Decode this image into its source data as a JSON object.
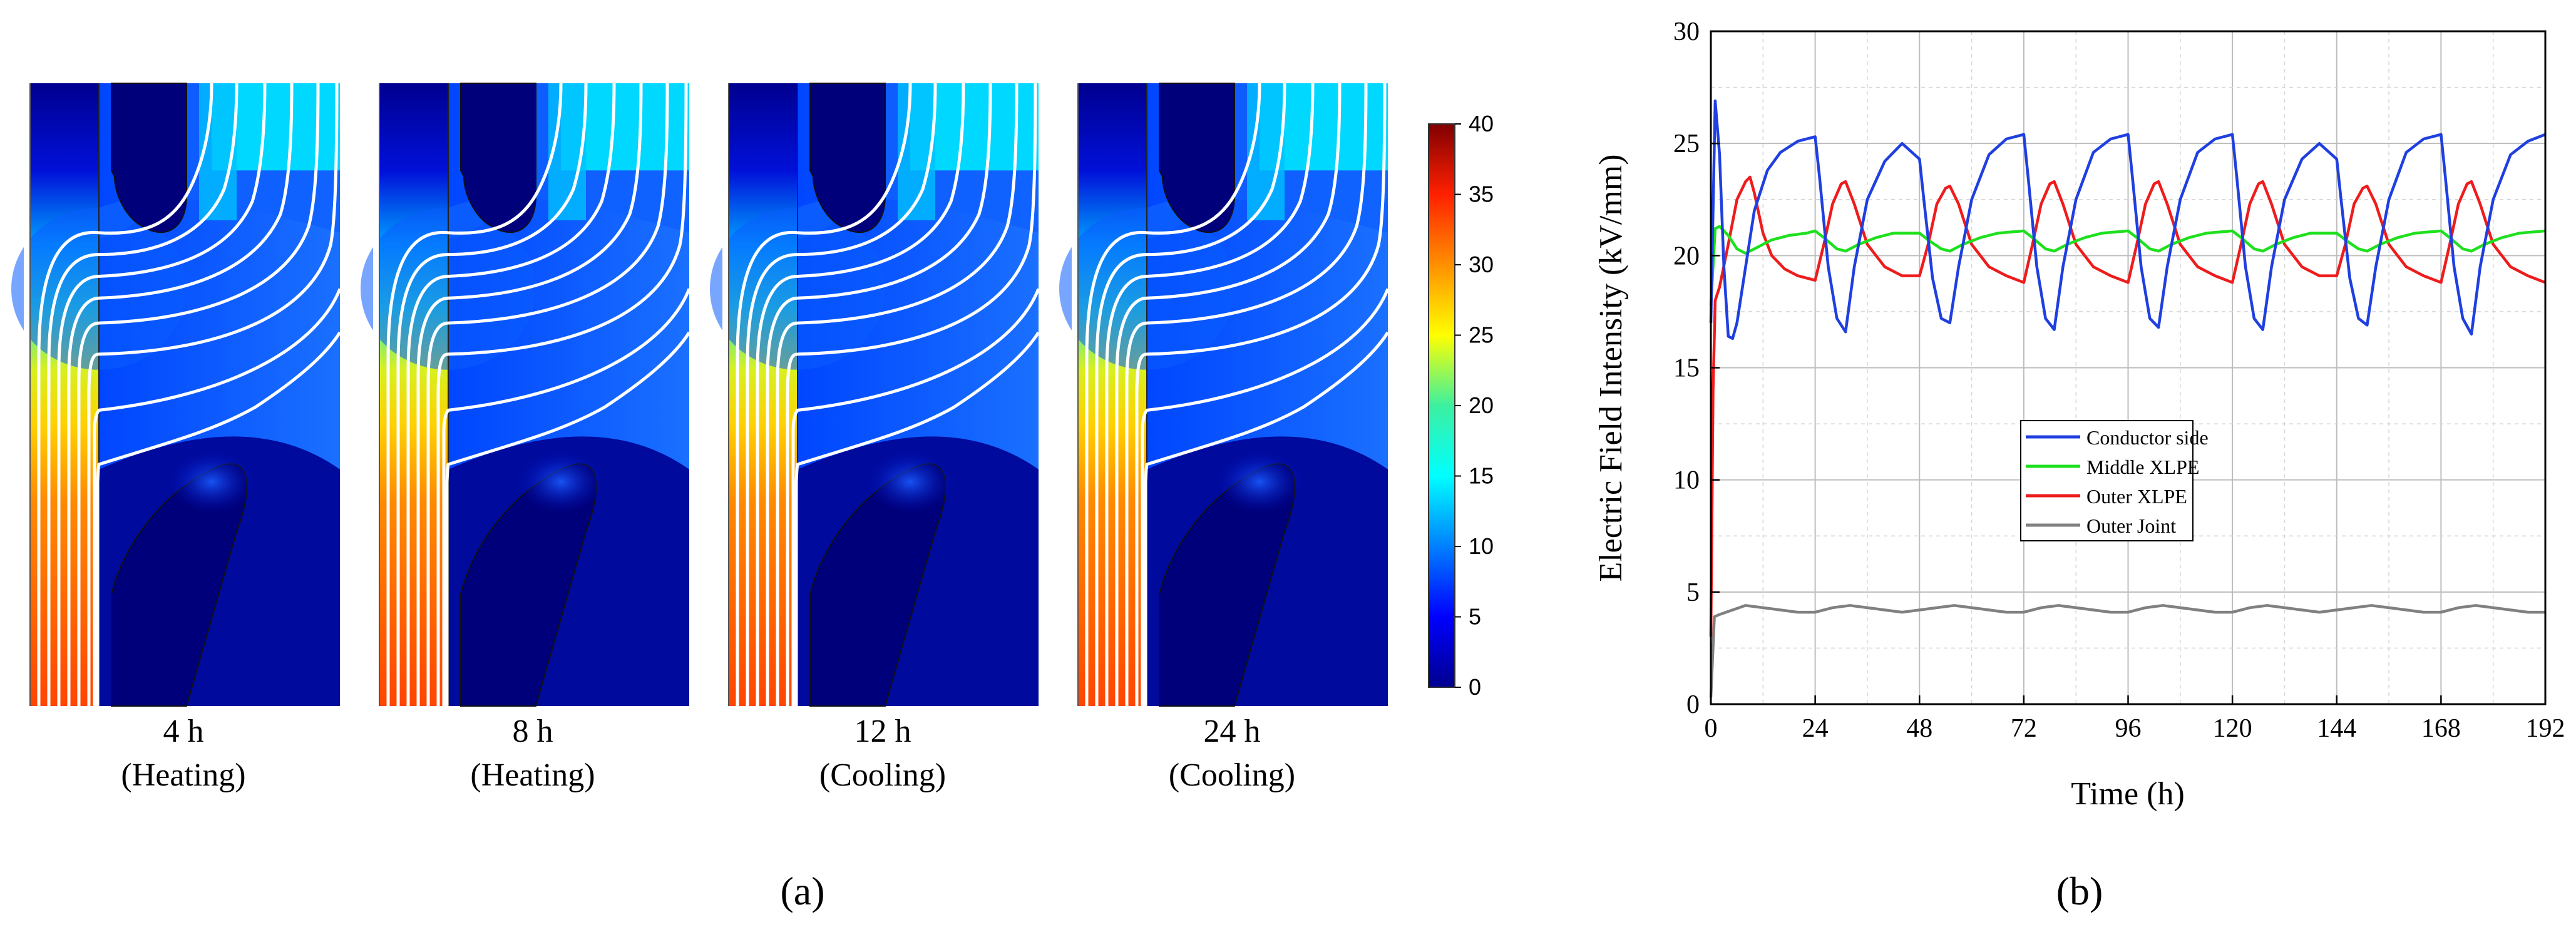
{
  "panel_a": {
    "label": "(a)",
    "colorbar": {
      "min": 0,
      "max": 40,
      "ticks": [
        0,
        5,
        10,
        15,
        20,
        25,
        30,
        35,
        40
      ]
    },
    "maps": [
      {
        "time": "4 h",
        "mode": "(Heating)"
      },
      {
        "time": "8 h",
        "mode": "(Heating)"
      },
      {
        "time": "12 h",
        "mode": "(Cooling)"
      },
      {
        "time": "24 h",
        "mode": "(Cooling)"
      }
    ]
  },
  "panel_b": {
    "label": "(b)"
  },
  "chart_data": {
    "type": "line",
    "title": "",
    "xlabel": "Time (h)",
    "ylabel": "Electric Field Intensity (kV/mm)",
    "xlim": [
      0,
      192
    ],
    "ylim": [
      0,
      30
    ],
    "xticks": [
      0,
      24,
      48,
      72,
      96,
      120,
      144,
      168,
      192
    ],
    "yticks": [
      0,
      5,
      10,
      15,
      20,
      25,
      30
    ],
    "grid": true,
    "legend_position": "center-left",
    "series": [
      {
        "name": "Conductor side",
        "color": "#1f3fe0",
        "points": [
          [
            0,
            17.0
          ],
          [
            1,
            26.9
          ],
          [
            2,
            24.5
          ],
          [
            3,
            19.5
          ],
          [
            4,
            16.4
          ],
          [
            5,
            16.3
          ],
          [
            6,
            17.0
          ],
          [
            8,
            19.5
          ],
          [
            10,
            22.0
          ],
          [
            13,
            23.8
          ],
          [
            16,
            24.6
          ],
          [
            20,
            25.1
          ],
          [
            24,
            25.3
          ],
          [
            25,
            23.5
          ],
          [
            27,
            19.5
          ],
          [
            29,
            17.2
          ],
          [
            31,
            16.6
          ],
          [
            33,
            19.5
          ],
          [
            36,
            22.5
          ],
          [
            40,
            24.2
          ],
          [
            44,
            25.0
          ],
          [
            48,
            24.3
          ],
          [
            49,
            22.5
          ],
          [
            51,
            19.0
          ],
          [
            53,
            17.2
          ],
          [
            55,
            17.0
          ],
          [
            57,
            19.5
          ],
          [
            60,
            22.5
          ],
          [
            64,
            24.5
          ],
          [
            68,
            25.2
          ],
          [
            72,
            25.4
          ],
          [
            73,
            23.5
          ],
          [
            75,
            19.5
          ],
          [
            77,
            17.2
          ],
          [
            79,
            16.7
          ],
          [
            81,
            19.5
          ],
          [
            84,
            22.5
          ],
          [
            88,
            24.6
          ],
          [
            92,
            25.2
          ],
          [
            96,
            25.4
          ],
          [
            97,
            23.5
          ],
          [
            99,
            19.5
          ],
          [
            101,
            17.2
          ],
          [
            103,
            16.8
          ],
          [
            105,
            19.5
          ],
          [
            108,
            22.5
          ],
          [
            112,
            24.6
          ],
          [
            116,
            25.2
          ],
          [
            120,
            25.4
          ],
          [
            121,
            23.5
          ],
          [
            123,
            19.5
          ],
          [
            125,
            17.2
          ],
          [
            127,
            16.7
          ],
          [
            129,
            19.5
          ],
          [
            132,
            22.5
          ],
          [
            136,
            24.3
          ],
          [
            140,
            25.0
          ],
          [
            144,
            24.3
          ],
          [
            145,
            22.5
          ],
          [
            147,
            19.0
          ],
          [
            149,
            17.2
          ],
          [
            151,
            16.9
          ],
          [
            153,
            19.5
          ],
          [
            156,
            22.5
          ],
          [
            160,
            24.6
          ],
          [
            164,
            25.2
          ],
          [
            168,
            25.4
          ],
          [
            169,
            23.5
          ],
          [
            171,
            19.5
          ],
          [
            173,
            17.2
          ],
          [
            175,
            16.5
          ],
          [
            177,
            19.5
          ],
          [
            180,
            22.5
          ],
          [
            184,
            24.5
          ],
          [
            188,
            25.1
          ],
          [
            192,
            25.4
          ]
        ]
      },
      {
        "name": "Middle XLPE",
        "color": "#1ee01e",
        "points": [
          [
            0,
            17.8
          ],
          [
            1,
            21.2
          ],
          [
            2,
            21.3
          ],
          [
            4,
            20.9
          ],
          [
            6,
            20.3
          ],
          [
            8,
            20.1
          ],
          [
            10,
            20.3
          ],
          [
            14,
            20.7
          ],
          [
            18,
            20.9
          ],
          [
            22,
            21.0
          ],
          [
            24,
            21.1
          ],
          [
            26,
            20.8
          ],
          [
            29,
            20.3
          ],
          [
            31,
            20.2
          ],
          [
            34,
            20.5
          ],
          [
            38,
            20.8
          ],
          [
            42,
            21.0
          ],
          [
            48,
            21.0
          ],
          [
            50,
            20.7
          ],
          [
            53,
            20.3
          ],
          [
            55,
            20.2
          ],
          [
            58,
            20.5
          ],
          [
            62,
            20.8
          ],
          [
            66,
            21.0
          ],
          [
            72,
            21.1
          ],
          [
            74,
            20.8
          ],
          [
            77,
            20.3
          ],
          [
            79,
            20.2
          ],
          [
            82,
            20.5
          ],
          [
            86,
            20.8
          ],
          [
            90,
            21.0
          ],
          [
            96,
            21.1
          ],
          [
            98,
            20.8
          ],
          [
            101,
            20.3
          ],
          [
            103,
            20.2
          ],
          [
            106,
            20.5
          ],
          [
            110,
            20.8
          ],
          [
            114,
            21.0
          ],
          [
            120,
            21.1
          ],
          [
            122,
            20.8
          ],
          [
            125,
            20.3
          ],
          [
            127,
            20.2
          ],
          [
            130,
            20.5
          ],
          [
            134,
            20.8
          ],
          [
            138,
            21.0
          ],
          [
            144,
            21.0
          ],
          [
            146,
            20.7
          ],
          [
            149,
            20.3
          ],
          [
            151,
            20.2
          ],
          [
            154,
            20.5
          ],
          [
            158,
            20.8
          ],
          [
            162,
            21.0
          ],
          [
            168,
            21.1
          ],
          [
            170,
            20.8
          ],
          [
            173,
            20.3
          ],
          [
            175,
            20.2
          ],
          [
            178,
            20.5
          ],
          [
            182,
            20.8
          ],
          [
            186,
            21.0
          ],
          [
            192,
            21.1
          ]
        ]
      },
      {
        "name": "Outer XLPE",
        "color": "#ee1c1c",
        "points": [
          [
            0,
            3.0
          ],
          [
            0.5,
            14.0
          ],
          [
            1,
            18.0
          ],
          [
            2,
            18.6
          ],
          [
            4,
            20.5
          ],
          [
            6,
            22.5
          ],
          [
            8,
            23.3
          ],
          [
            9,
            23.5
          ],
          [
            10,
            22.8
          ],
          [
            12,
            21.0
          ],
          [
            14,
            20.0
          ],
          [
            17,
            19.4
          ],
          [
            20,
            19.1
          ],
          [
            24,
            18.9
          ],
          [
            26,
            20.5
          ],
          [
            28,
            22.3
          ],
          [
            30,
            23.2
          ],
          [
            31,
            23.3
          ],
          [
            33,
            22.3
          ],
          [
            36,
            20.5
          ],
          [
            40,
            19.5
          ],
          [
            44,
            19.1
          ],
          [
            48,
            19.1
          ],
          [
            50,
            20.5
          ],
          [
            52,
            22.3
          ],
          [
            54,
            23.0
          ],
          [
            55,
            23.1
          ],
          [
            57,
            22.3
          ],
          [
            60,
            20.5
          ],
          [
            64,
            19.5
          ],
          [
            68,
            19.1
          ],
          [
            72,
            18.8
          ],
          [
            74,
            20.5
          ],
          [
            76,
            22.3
          ],
          [
            78,
            23.2
          ],
          [
            79,
            23.3
          ],
          [
            81,
            22.3
          ],
          [
            84,
            20.5
          ],
          [
            88,
            19.5
          ],
          [
            92,
            19.1
          ],
          [
            96,
            18.8
          ],
          [
            98,
            20.5
          ],
          [
            100,
            22.3
          ],
          [
            102,
            23.2
          ],
          [
            103,
            23.3
          ],
          [
            105,
            22.3
          ],
          [
            108,
            20.5
          ],
          [
            112,
            19.5
          ],
          [
            116,
            19.1
          ],
          [
            120,
            18.8
          ],
          [
            122,
            20.5
          ],
          [
            124,
            22.3
          ],
          [
            126,
            23.2
          ],
          [
            127,
            23.3
          ],
          [
            129,
            22.3
          ],
          [
            132,
            20.5
          ],
          [
            136,
            19.5
          ],
          [
            140,
            19.1
          ],
          [
            144,
            19.1
          ],
          [
            146,
            20.5
          ],
          [
            148,
            22.3
          ],
          [
            150,
            23.0
          ],
          [
            151,
            23.1
          ],
          [
            153,
            22.3
          ],
          [
            156,
            20.5
          ],
          [
            160,
            19.5
          ],
          [
            164,
            19.1
          ],
          [
            168,
            18.8
          ],
          [
            170,
            20.5
          ],
          [
            172,
            22.3
          ],
          [
            174,
            23.2
          ],
          [
            175,
            23.3
          ],
          [
            177,
            22.3
          ],
          [
            180,
            20.5
          ],
          [
            184,
            19.5
          ],
          [
            188,
            19.1
          ],
          [
            192,
            18.8
          ]
        ]
      },
      {
        "name": "Outer Joint",
        "color": "#808080",
        "points": [
          [
            0,
            0.3
          ],
          [
            0.8,
            3.9
          ],
          [
            2,
            4.0
          ],
          [
            5,
            4.2
          ],
          [
            8,
            4.4
          ],
          [
            12,
            4.3
          ],
          [
            16,
            4.2
          ],
          [
            20,
            4.1
          ],
          [
            24,
            4.1
          ],
          [
            28,
            4.3
          ],
          [
            32,
            4.4
          ],
          [
            36,
            4.3
          ],
          [
            40,
            4.2
          ],
          [
            44,
            4.1
          ],
          [
            48,
            4.2
          ],
          [
            52,
            4.3
          ],
          [
            56,
            4.4
          ],
          [
            60,
            4.3
          ],
          [
            64,
            4.2
          ],
          [
            68,
            4.1
          ],
          [
            72,
            4.1
          ],
          [
            76,
            4.3
          ],
          [
            80,
            4.4
          ],
          [
            84,
            4.3
          ],
          [
            88,
            4.2
          ],
          [
            92,
            4.1
          ],
          [
            96,
            4.1
          ],
          [
            100,
            4.3
          ],
          [
            104,
            4.4
          ],
          [
            108,
            4.3
          ],
          [
            112,
            4.2
          ],
          [
            116,
            4.1
          ],
          [
            120,
            4.1
          ],
          [
            124,
            4.3
          ],
          [
            128,
            4.4
          ],
          [
            132,
            4.3
          ],
          [
            136,
            4.2
          ],
          [
            140,
            4.1
          ],
          [
            144,
            4.2
          ],
          [
            148,
            4.3
          ],
          [
            152,
            4.4
          ],
          [
            156,
            4.3
          ],
          [
            160,
            4.2
          ],
          [
            164,
            4.1
          ],
          [
            168,
            4.1
          ],
          [
            172,
            4.3
          ],
          [
            176,
            4.4
          ],
          [
            180,
            4.3
          ],
          [
            184,
            4.2
          ],
          [
            188,
            4.1
          ],
          [
            192,
            4.1
          ]
        ]
      }
    ]
  }
}
